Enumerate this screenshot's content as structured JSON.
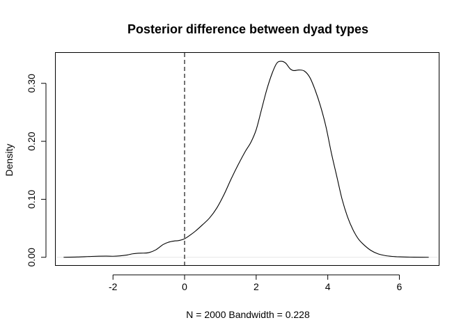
{
  "chart_data": {
    "type": "line",
    "title": "Posterior difference between dyad types",
    "xlabel": "N = 2000   Bandwidth = 0.228",
    "ylabel": "Density",
    "xlim": [
      -3.6,
      7.1
    ],
    "ylim": [
      -0.0135,
      0.3525
    ],
    "x_ticks": [
      -2,
      0,
      2,
      4,
      6
    ],
    "x_tick_labels": [
      "-2",
      "0",
      "2",
      "4",
      "6"
    ],
    "y_ticks": [
      0.0,
      0.1,
      0.2,
      0.3
    ],
    "y_tick_labels": [
      "0.00",
      "0.10",
      "0.20",
      "0.30"
    ],
    "grid": false,
    "legend": "none",
    "reference_line": {
      "x": 0,
      "style": "dashed"
    },
    "baseline": {
      "y": 0
    },
    "series": [
      {
        "x": [
          -3.38,
          -3.0,
          -2.6,
          -2.2,
          -2.0,
          -1.8,
          -1.6,
          -1.45,
          -1.3,
          -1.15,
          -1.0,
          -0.8,
          -0.6,
          -0.45,
          -0.3,
          -0.15,
          0.0,
          0.15,
          0.3,
          0.5,
          0.7,
          0.9,
          1.1,
          1.3,
          1.5,
          1.7,
          1.85,
          2.0,
          2.15,
          2.3,
          2.45,
          2.58,
          2.7,
          2.82,
          2.95,
          3.05,
          3.2,
          3.35,
          3.5,
          3.65,
          3.8,
          3.95,
          4.1,
          4.25,
          4.4,
          4.55,
          4.7,
          4.85,
          5.0,
          5.2,
          5.4,
          5.6,
          5.8,
          6.0,
          6.3,
          6.6,
          6.82
        ],
        "y": [
          0.0,
          0.0005,
          0.0015,
          0.002,
          0.0018,
          0.0025,
          0.004,
          0.006,
          0.007,
          0.0072,
          0.008,
          0.013,
          0.022,
          0.026,
          0.028,
          0.029,
          0.032,
          0.038,
          0.045,
          0.056,
          0.068,
          0.085,
          0.108,
          0.135,
          0.16,
          0.183,
          0.198,
          0.22,
          0.255,
          0.29,
          0.318,
          0.335,
          0.338,
          0.335,
          0.325,
          0.322,
          0.323,
          0.321,
          0.31,
          0.288,
          0.26,
          0.225,
          0.18,
          0.14,
          0.1,
          0.07,
          0.048,
          0.032,
          0.022,
          0.012,
          0.006,
          0.003,
          0.0015,
          0.0008,
          0.0003,
          0.0001,
          0.0
        ]
      }
    ]
  }
}
